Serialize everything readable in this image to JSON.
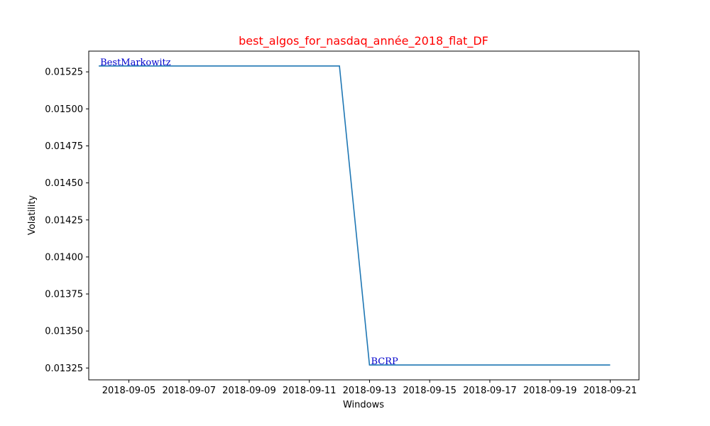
{
  "chart_data": {
    "type": "line",
    "title": "best_algos_for_nasdaq_année_2018_flat_DF",
    "title_color": "#ff0000",
    "xlabel": "Windows",
    "ylabel": "Volatility",
    "line_color": "#1f77b4",
    "annotation_color": "#0000cc",
    "x_ticks": [
      "2018-09-05",
      "2018-09-07",
      "2018-09-09",
      "2018-09-11",
      "2018-09-13",
      "2018-09-15",
      "2018-09-17",
      "2018-09-19",
      "2018-09-21"
    ],
    "y_ticks": [
      "0.01325",
      "0.01350",
      "0.01375",
      "0.01400",
      "0.01425",
      "0.01450",
      "0.01475",
      "0.01500",
      "0.01525"
    ],
    "xlim": [
      "2018-09-03T16:00",
      "2018-09-21T23:00"
    ],
    "ylim": [
      0.01317,
      0.01539
    ],
    "grid": false,
    "series": [
      {
        "x": [
          "2018-09-04",
          "2018-09-12",
          "2018-09-13",
          "2018-09-21"
        ],
        "y": [
          0.01529,
          0.01529,
          0.01327,
          0.01327
        ]
      }
    ],
    "annotations": [
      {
        "text": "BestMarkowitz",
        "x": "2018-09-04",
        "y": 0.01529
      },
      {
        "text": "BCRP",
        "x": "2018-09-13",
        "y": 0.01327
      }
    ]
  }
}
